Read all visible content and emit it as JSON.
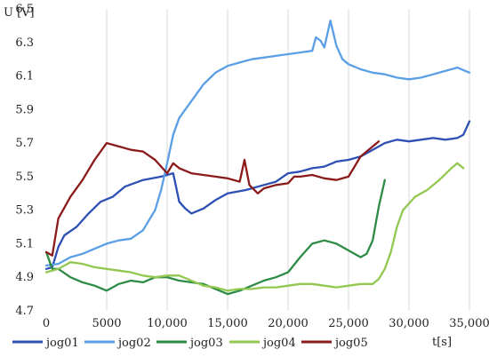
{
  "chart_data": {
    "type": "line",
    "xlabel": "t[s]",
    "ylabel": "U [V]",
    "xlim": [
      0,
      35000
    ],
    "ylim": [
      4.7,
      6.5
    ],
    "x_ticks": [
      0,
      5000,
      10000,
      15000,
      20000,
      25000,
      30000,
      35000
    ],
    "x_tick_labels": [
      "0",
      "5000",
      "10,000",
      "15,000",
      "20,000",
      "25,000",
      "30,000",
      "35,000"
    ],
    "y_ticks": [
      4.7,
      4.9,
      5.1,
      5.3,
      5.5,
      5.7,
      5.9,
      6.1,
      6.3,
      6.5
    ],
    "y_tick_labels": [
      "4.7",
      "4.9",
      "5.1",
      "5.3",
      "5.5",
      "5.7",
      "5.9",
      "6.1",
      "6.3",
      "6.5"
    ],
    "grid": "vertical",
    "legend_position": "bottom",
    "series": [
      {
        "name": "jog01",
        "color": "#2e4fb3",
        "points": [
          [
            0,
            4.95
          ],
          [
            500,
            4.96
          ],
          [
            1000,
            5.08
          ],
          [
            1500,
            5.15
          ],
          [
            2500,
            5.2
          ],
          [
            3500,
            5.28
          ],
          [
            4500,
            5.35
          ],
          [
            5500,
            5.38
          ],
          [
            6500,
            5.44
          ],
          [
            8000,
            5.48
          ],
          [
            9500,
            5.5
          ],
          [
            10500,
            5.52
          ],
          [
            11000,
            5.35
          ],
          [
            11500,
            5.31
          ],
          [
            12000,
            5.28
          ],
          [
            13000,
            5.31
          ],
          [
            14000,
            5.36
          ],
          [
            15000,
            5.4
          ],
          [
            16500,
            5.42
          ],
          [
            18000,
            5.45
          ],
          [
            19000,
            5.47
          ],
          [
            20000,
            5.52
          ],
          [
            21000,
            5.53
          ],
          [
            22000,
            5.55
          ],
          [
            23000,
            5.56
          ],
          [
            24000,
            5.59
          ],
          [
            25000,
            5.6
          ],
          [
            26000,
            5.62
          ],
          [
            27000,
            5.66
          ],
          [
            28000,
            5.7
          ],
          [
            29000,
            5.72
          ],
          [
            30000,
            5.71
          ],
          [
            31000,
            5.72
          ],
          [
            32000,
            5.73
          ],
          [
            33000,
            5.72
          ],
          [
            34000,
            5.73
          ],
          [
            34500,
            5.75
          ],
          [
            35000,
            5.83
          ]
        ]
      },
      {
        "name": "jog02",
        "color": "#5a9fe6",
        "points": [
          [
            0,
            4.97
          ],
          [
            1000,
            4.98
          ],
          [
            2000,
            5.02
          ],
          [
            3000,
            5.04
          ],
          [
            4000,
            5.07
          ],
          [
            5000,
            5.1
          ],
          [
            6000,
            5.12
          ],
          [
            7000,
            5.13
          ],
          [
            8000,
            5.18
          ],
          [
            9000,
            5.3
          ],
          [
            9500,
            5.42
          ],
          [
            10000,
            5.58
          ],
          [
            10500,
            5.75
          ],
          [
            11000,
            5.85
          ],
          [
            12000,
            5.95
          ],
          [
            13000,
            6.05
          ],
          [
            14000,
            6.12
          ],
          [
            15000,
            6.16
          ],
          [
            16000,
            6.18
          ],
          [
            17000,
            6.2
          ],
          [
            18000,
            6.21
          ],
          [
            19000,
            6.22
          ],
          [
            20000,
            6.23
          ],
          [
            21000,
            6.24
          ],
          [
            22000,
            6.25
          ],
          [
            22300,
            6.33
          ],
          [
            22700,
            6.31
          ],
          [
            23000,
            6.27
          ],
          [
            23500,
            6.43
          ],
          [
            24000,
            6.28
          ],
          [
            24500,
            6.2
          ],
          [
            25000,
            6.17
          ],
          [
            26000,
            6.14
          ],
          [
            27000,
            6.12
          ],
          [
            28000,
            6.11
          ],
          [
            29000,
            6.09
          ],
          [
            30000,
            6.08
          ],
          [
            31000,
            6.09
          ],
          [
            32000,
            6.11
          ],
          [
            33000,
            6.13
          ],
          [
            34000,
            6.15
          ],
          [
            35000,
            6.12
          ]
        ]
      },
      {
        "name": "jog03",
        "color": "#2e8b45",
        "points": [
          [
            0,
            5.05
          ],
          [
            500,
            4.95
          ],
          [
            1000,
            4.95
          ],
          [
            2000,
            4.9
          ],
          [
            3000,
            4.87
          ],
          [
            4000,
            4.85
          ],
          [
            5000,
            4.82
          ],
          [
            6000,
            4.86
          ],
          [
            7000,
            4.88
          ],
          [
            8000,
            4.87
          ],
          [
            9000,
            4.9
          ],
          [
            10000,
            4.9
          ],
          [
            11000,
            4.88
          ],
          [
            12000,
            4.87
          ],
          [
            13000,
            4.86
          ],
          [
            14000,
            4.83
          ],
          [
            15000,
            4.8
          ],
          [
            16000,
            4.82
          ],
          [
            17000,
            4.85
          ],
          [
            18000,
            4.88
          ],
          [
            19000,
            4.9
          ],
          [
            20000,
            4.93
          ],
          [
            21000,
            5.02
          ],
          [
            22000,
            5.1
          ],
          [
            23000,
            5.12
          ],
          [
            24000,
            5.1
          ],
          [
            25000,
            5.06
          ],
          [
            26000,
            5.02
          ],
          [
            26500,
            5.04
          ],
          [
            27000,
            5.12
          ],
          [
            27500,
            5.32
          ],
          [
            28000,
            5.48
          ]
        ]
      },
      {
        "name": "jog04",
        "color": "#92c850",
        "points": [
          [
            0,
            4.93
          ],
          [
            1000,
            4.95
          ],
          [
            2000,
            4.99
          ],
          [
            3000,
            4.98
          ],
          [
            4000,
            4.96
          ],
          [
            5000,
            4.95
          ],
          [
            6000,
            4.94
          ],
          [
            7000,
            4.93
          ],
          [
            8000,
            4.91
          ],
          [
            9000,
            4.9
          ],
          [
            10000,
            4.91
          ],
          [
            11000,
            4.91
          ],
          [
            12000,
            4.88
          ],
          [
            13000,
            4.85
          ],
          [
            14000,
            4.84
          ],
          [
            15000,
            4.82
          ],
          [
            16000,
            4.83
          ],
          [
            17000,
            4.83
          ],
          [
            18000,
            4.84
          ],
          [
            19000,
            4.84
          ],
          [
            20000,
            4.85
          ],
          [
            21000,
            4.86
          ],
          [
            22000,
            4.86
          ],
          [
            23000,
            4.85
          ],
          [
            24000,
            4.84
          ],
          [
            25000,
            4.85
          ],
          [
            26000,
            4.86
          ],
          [
            27000,
            4.86
          ],
          [
            27500,
            4.89
          ],
          [
            28000,
            4.95
          ],
          [
            28500,
            5.05
          ],
          [
            29000,
            5.2
          ],
          [
            29500,
            5.3
          ],
          [
            30500,
            5.38
          ],
          [
            31500,
            5.42
          ],
          [
            32500,
            5.48
          ],
          [
            33500,
            5.55
          ],
          [
            34000,
            5.58
          ],
          [
            34500,
            5.55
          ]
        ]
      },
      {
        "name": "jog05",
        "color": "#8b1a1a",
        "points": [
          [
            0,
            5.05
          ],
          [
            500,
            5.03
          ],
          [
            1000,
            5.25
          ],
          [
            2000,
            5.38
          ],
          [
            3000,
            5.48
          ],
          [
            4000,
            5.6
          ],
          [
            5000,
            5.7
          ],
          [
            6000,
            5.68
          ],
          [
            7000,
            5.66
          ],
          [
            8000,
            5.65
          ],
          [
            9000,
            5.6
          ],
          [
            10000,
            5.52
          ],
          [
            10500,
            5.58
          ],
          [
            11000,
            5.55
          ],
          [
            12000,
            5.52
          ],
          [
            13000,
            5.51
          ],
          [
            14000,
            5.5
          ],
          [
            15000,
            5.49
          ],
          [
            16000,
            5.47
          ],
          [
            16400,
            5.6
          ],
          [
            16800,
            5.45
          ],
          [
            17500,
            5.4
          ],
          [
            18000,
            5.43
          ],
          [
            19000,
            5.45
          ],
          [
            20000,
            5.46
          ],
          [
            20500,
            5.5
          ],
          [
            21000,
            5.5
          ],
          [
            22000,
            5.51
          ],
          [
            23000,
            5.49
          ],
          [
            24000,
            5.48
          ],
          [
            25000,
            5.5
          ],
          [
            26000,
            5.62
          ],
          [
            27000,
            5.68
          ],
          [
            27500,
            5.71
          ]
        ]
      }
    ]
  }
}
